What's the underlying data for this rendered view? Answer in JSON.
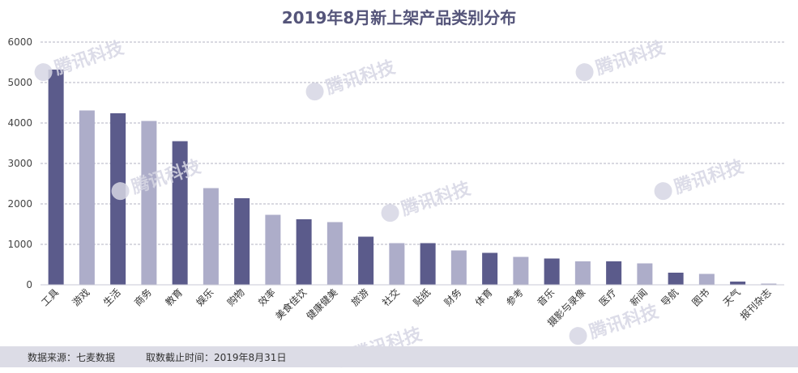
{
  "chart_data": {
    "type": "bar",
    "title": "2019年8月新上架产品类别分布",
    "categories": [
      "工具",
      "游戏",
      "生活",
      "商务",
      "教育",
      "娱乐",
      "购物",
      "效率",
      "美食佳饮",
      "健康健美",
      "旅游",
      "社交",
      "贴纸",
      "财务",
      "体育",
      "参考",
      "音乐",
      "摄影与录像",
      "医疗",
      "新闻",
      "导航",
      "图书",
      "天气",
      "报刊杂志"
    ],
    "values": [
      5320,
      4310,
      4240,
      4050,
      3550,
      2390,
      2140,
      1730,
      1620,
      1550,
      1190,
      1030,
      1030,
      850,
      790,
      690,
      650,
      580,
      580,
      530,
      300,
      270,
      80,
      30
    ],
    "ylim": [
      0,
      6000
    ],
    "yticks": [
      0,
      1000,
      2000,
      3000,
      4000,
      5000,
      6000
    ],
    "grid": true,
    "bar_colors": [
      "#5b5b8b",
      "#adadc9"
    ]
  },
  "footer": {
    "source": "数据来源：七麦数据",
    "date": "取数截止时间：2019年8月31日"
  },
  "watermark": {
    "text": "腾讯科技"
  }
}
